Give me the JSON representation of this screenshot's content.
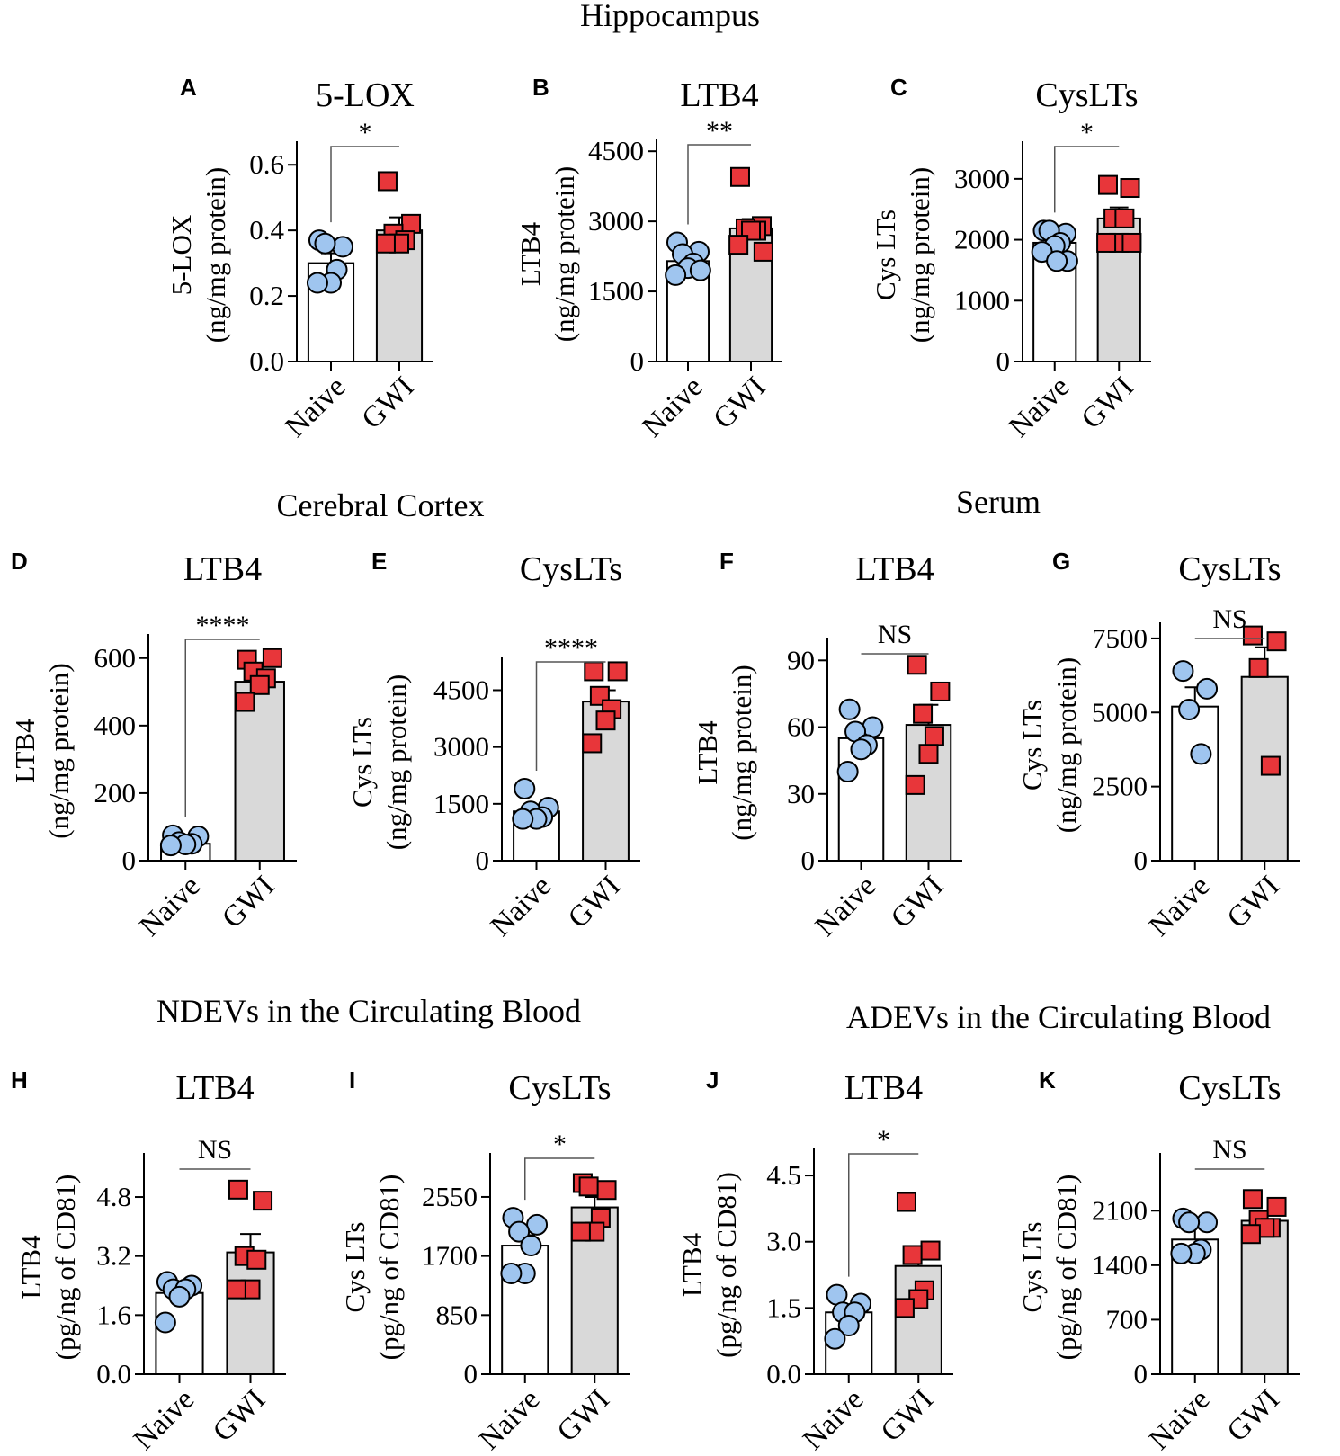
{
  "sections": [
    {
      "id": "hippocampus",
      "title": "Hippocampus"
    },
    {
      "id": "cortex",
      "title": "Cerebral Cortex"
    },
    {
      "id": "serum",
      "title": "Serum"
    },
    {
      "id": "ndev",
      "title": "NDEVs in the Circulating Blood"
    },
    {
      "id": "adev",
      "title": "ADEVs in the Circulating Blood"
    }
  ],
  "colors": {
    "naive_bar": "#ffffff",
    "gwi_bar": "#d9d9d9",
    "naive_point": "#9fc5ef",
    "gwi_point": "#e8363a",
    "stroke": "#000000"
  },
  "chart_data": [
    {
      "letter": "A",
      "type": "bar",
      "title": "5-LOX",
      "ylabel": [
        "5-LOX",
        "(ng/mg protein)"
      ],
      "categories": [
        "Naive",
        "GWI"
      ],
      "ylim": [
        0,
        0.65
      ],
      "yticks": [
        "0.0",
        "0.2",
        "0.4",
        "0.6"
      ],
      "series": [
        {
          "name": "Naive",
          "mean": 0.3,
          "sem": 0.03,
          "points": [
            0.37,
            0.35,
            0.36,
            0.28,
            0.24,
            0.24
          ]
        },
        {
          "name": "GWI",
          "mean": 0.4,
          "sem": 0.04,
          "points": [
            0.55,
            0.42,
            0.39,
            0.37,
            0.36,
            0.36
          ]
        }
      ],
      "significance": "*"
    },
    {
      "letter": "B",
      "type": "bar",
      "title": "LTB4",
      "ylabel": [
        "LTB4",
        "(ng/mg protein)"
      ],
      "categories": [
        "Naive",
        "GWI"
      ],
      "ylim": [
        0,
        4600
      ],
      "yticks": [
        "0",
        "1500",
        "3000",
        "4500"
      ],
      "series": [
        {
          "name": "Naive",
          "mean": 2150,
          "sem": 120,
          "points": [
            2550,
            2350,
            2300,
            2100,
            2000,
            1850,
            1950
          ]
        },
        {
          "name": "GWI",
          "mean": 2850,
          "sem": 200,
          "points": [
            3950,
            2900,
            2850,
            2800,
            2800,
            2500,
            2350
          ]
        }
      ],
      "significance": "**"
    },
    {
      "letter": "C",
      "type": "bar",
      "title": "CysLTs",
      "ylabel": [
        "Cys LTs",
        "(ng/mg protein)"
      ],
      "categories": [
        "Naive",
        "GWI"
      ],
      "ylim": [
        0,
        3500
      ],
      "yticks": [
        "0",
        "1000",
        "2000",
        "3000"
      ],
      "series": [
        {
          "name": "Naive",
          "mean": 1950,
          "sem": 80,
          "points": [
            2150,
            2100,
            2150,
            1950,
            1900,
            1800,
            1650,
            1650
          ]
        },
        {
          "name": "GWI",
          "mean": 2350,
          "sem": 180,
          "points": [
            2900,
            2850,
            2350,
            2350,
            1950,
            1950,
            1950
          ]
        }
      ],
      "significance": "*"
    },
    {
      "letter": "D",
      "type": "bar",
      "title": "LTB4",
      "ylabel": [
        "LTB4",
        "(ng/mg protein)"
      ],
      "categories": [
        "Naive",
        "GWI"
      ],
      "ylim": [
        0,
        650
      ],
      "yticks": [
        "0",
        "200",
        "400",
        "600"
      ],
      "series": [
        {
          "name": "Naive",
          "mean": 50,
          "sem": 8,
          "points": [
            75,
            72,
            55,
            50,
            48,
            45
          ]
        },
        {
          "name": "GWI",
          "mean": 530,
          "sem": 25,
          "points": [
            595,
            600,
            560,
            540,
            520,
            470
          ]
        }
      ],
      "significance": "****"
    },
    {
      "letter": "E",
      "type": "bar",
      "title": "CysLTs",
      "ylabel": [
        "Cys LTs",
        "(ng/mg protein)"
      ],
      "categories": [
        "Naive",
        "GWI"
      ],
      "ylim": [
        0,
        5200
      ],
      "yticks": [
        "0",
        "1500",
        "3000",
        "4500"
      ],
      "series": [
        {
          "name": "Naive",
          "mean": 1300,
          "sem": 150,
          "points": [
            1900,
            1400,
            1300,
            1150,
            1100,
            1100
          ]
        },
        {
          "name": "GWI",
          "mean": 4200,
          "sem": 300,
          "points": [
            5000,
            5000,
            4350,
            4000,
            3700,
            3100
          ]
        }
      ],
      "significance": "****"
    },
    {
      "letter": "F",
      "type": "bar",
      "title": "LTB4",
      "ylabel": [
        "LTB4",
        "(ng/mg protein)"
      ],
      "categories": [
        "Naive",
        "GWI"
      ],
      "ylim": [
        0,
        97
      ],
      "yticks": [
        "0",
        "30",
        "60",
        "90"
      ],
      "series": [
        {
          "name": "Naive",
          "mean": 55,
          "sem": 4,
          "points": [
            68,
            60,
            58,
            52,
            50,
            40
          ]
        },
        {
          "name": "GWI",
          "mean": 61,
          "sem": 9,
          "points": [
            88,
            76,
            66,
            56,
            48,
            34
          ]
        }
      ],
      "significance": "NS"
    },
    {
      "letter": "G",
      "type": "bar",
      "title": "CysLTs",
      "ylabel": [
        "Cys LTs",
        "(ng/mg protein)"
      ],
      "categories": [
        "Naive",
        "GWI"
      ],
      "ylim": [
        0,
        7800
      ],
      "yticks": [
        "0",
        "2500",
        "5000",
        "7500"
      ],
      "series": [
        {
          "name": "Naive",
          "mean": 5200,
          "sem": 650,
          "points": [
            6400,
            5800,
            5100,
            3600
          ]
        },
        {
          "name": "GWI",
          "mean": 6200,
          "sem": 1000,
          "points": [
            7600,
            7400,
            6500,
            3200
          ]
        }
      ],
      "significance": "NS"
    },
    {
      "letter": "H",
      "type": "bar",
      "title": "LTB4",
      "ylabel": [
        "LTB4",
        "(pg/ng of CD81)"
      ],
      "categories": [
        "Naive",
        "GWI"
      ],
      "ylim": [
        0,
        5.8
      ],
      "yticks": [
        "0.0",
        "1.6",
        "3.2",
        "4.8"
      ],
      "series": [
        {
          "name": "Naive",
          "mean": 2.2,
          "sem": 0.2,
          "points": [
            2.5,
            2.4,
            2.3,
            2.3,
            2.1,
            1.4
          ]
        },
        {
          "name": "GWI",
          "mean": 3.3,
          "sem": 0.5,
          "points": [
            5.0,
            4.7,
            3.2,
            3.1,
            2.3,
            2.3
          ]
        }
      ],
      "significance": "NS"
    },
    {
      "letter": "I",
      "type": "bar",
      "title": "CysLTs",
      "ylabel": [
        "Cys LTs",
        "(pg/ng of CD81)"
      ],
      "categories": [
        "Naive",
        "GWI"
      ],
      "ylim": [
        0,
        3080
      ],
      "yticks": [
        "0",
        "850",
        "1700",
        "2550"
      ],
      "series": [
        {
          "name": "Naive",
          "mean": 1850,
          "sem": 150,
          "points": [
            2250,
            2150,
            2050,
            1850,
            1450,
            1450
          ]
        },
        {
          "name": "GWI",
          "mean": 2400,
          "sem": 150,
          "points": [
            2750,
            2650,
            2700,
            2250,
            2050,
            2050
          ]
        }
      ],
      "significance": "*"
    },
    {
      "letter": "J",
      "type": "bar",
      "title": "LTB4",
      "ylabel": [
        "LTB4",
        "(pg/ng of CD81)"
      ],
      "categories": [
        "Naive",
        "GWI"
      ],
      "ylim": [
        0,
        4.95
      ],
      "yticks": [
        "0.0",
        "1.5",
        "3.0",
        "4.5"
      ],
      "series": [
        {
          "name": "Naive",
          "mean": 1.4,
          "sem": 0.15,
          "points": [
            1.8,
            1.6,
            1.4,
            1.4,
            1.1,
            0.8
          ]
        },
        {
          "name": "GWI",
          "mean": 2.45,
          "sem": 0.35,
          "points": [
            3.9,
            2.8,
            2.7,
            1.9,
            1.7,
            1.5
          ]
        }
      ],
      "significance": "*"
    },
    {
      "letter": "K",
      "type": "bar",
      "title": "CysLTs",
      "ylabel": [
        "Cys LTs",
        "(pg/ng of CD81)"
      ],
      "categories": [
        "Naive",
        "GWI"
      ],
      "ylim": [
        0,
        2750
      ],
      "yticks": [
        "0",
        "700",
        "1400",
        "2100"
      ],
      "series": [
        {
          "name": "Naive",
          "mean": 1730,
          "sem": 150,
          "points": [
            2000,
            1950,
            1950,
            1600,
            1550,
            1550
          ]
        },
        {
          "name": "GWI",
          "mean": 1970,
          "sem": 110,
          "points": [
            2250,
            2150,
            1980,
            1880,
            1880,
            1800
          ]
        }
      ],
      "significance": "NS"
    }
  ]
}
